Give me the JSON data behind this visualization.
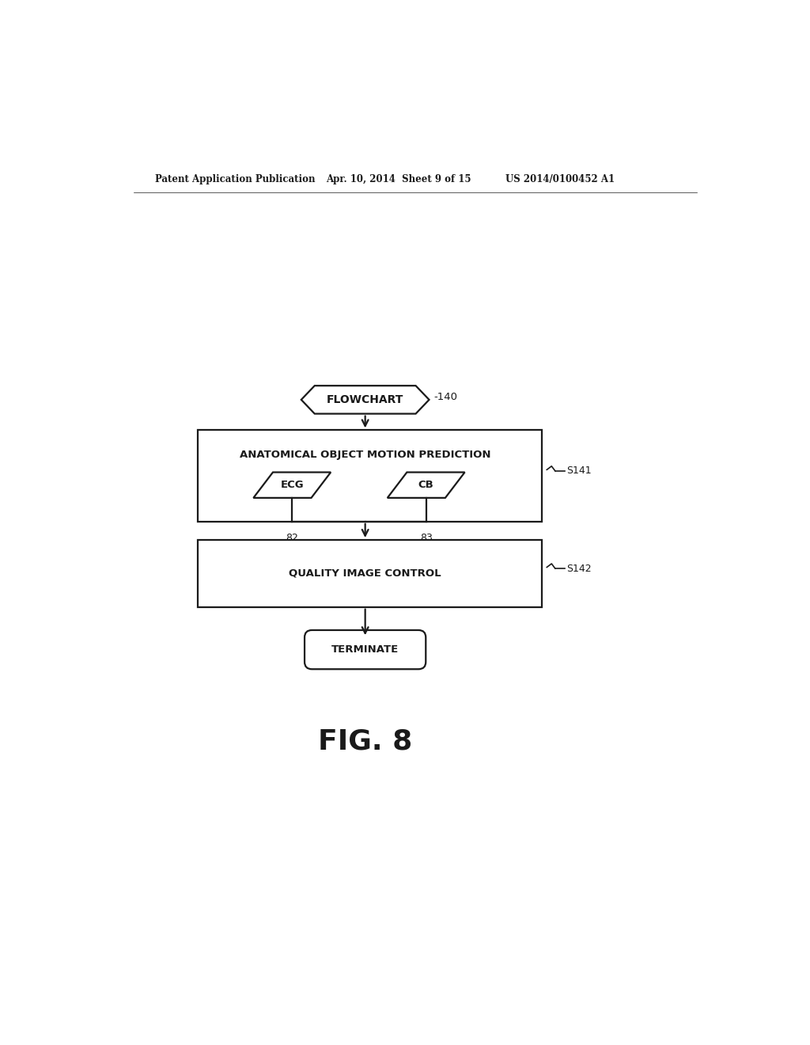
{
  "bg_color": "#ffffff",
  "text_color": "#1a1a1a",
  "header_text": "Patent Application Publication",
  "header_date": "Apr. 10, 2014  Sheet 9 of 15",
  "header_patent": "US 2014/0100452 A1",
  "fig_label": "FIG. 8",
  "flowchart_label": "FLOWCHART",
  "flowchart_ref": "-140",
  "box1_text": "ANATOMICAL OBJECT MOTION PREDICTION",
  "box1_ref": "S141",
  "ecg_label": "ECG",
  "cb_label": "CB",
  "ecg_ref": "82",
  "cb_ref": "83",
  "box2_text": "QUALITY IMAGE CONTROL",
  "box2_ref": "S142",
  "terminate_text": "TERMINATE",
  "lw": 1.6
}
